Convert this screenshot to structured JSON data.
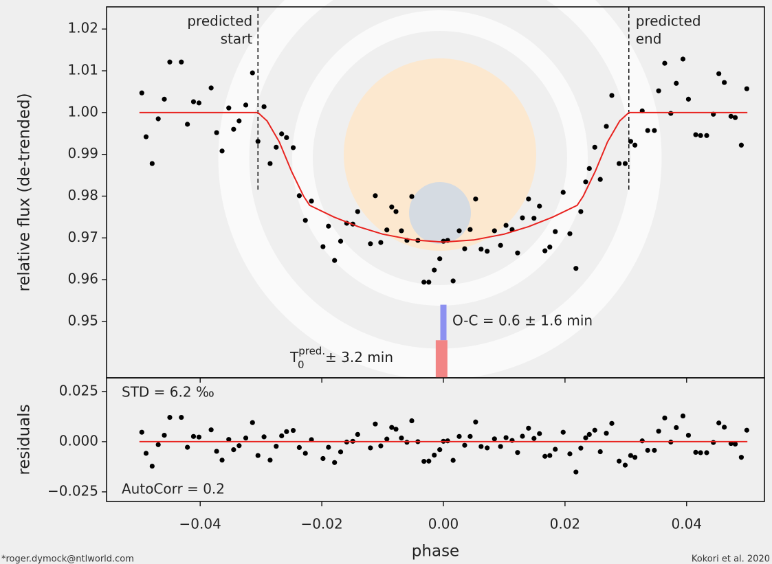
{
  "chart_data": [
    {
      "type": "scatter",
      "ylabel": "relative flux (de-trended)",
      "xlim": [
        -0.0554,
        0.0528
      ],
      "ylim": [
        0.9365,
        1.0253
      ],
      "xticks": [
        -0.04,
        -0.02,
        0,
        0.02,
        0.04
      ],
      "yticks": [
        0.95,
        0.96,
        0.97,
        0.98,
        0.99,
        {
          "value": 1,
          "label": "1.00"
        },
        1.01,
        1.02
      ],
      "series": [
        {
          "type": "scatter",
          "color": "#000000",
          "x": [
            -0.0496,
            -0.0489,
            -0.0479,
            -0.0469,
            -0.0459,
            -0.045,
            -0.0431,
            -0.0421,
            -0.0411,
            -0.0402,
            -0.0382,
            -0.0373,
            -0.0364,
            -0.0353,
            -0.0345,
            -0.0336,
            -0.0325,
            -0.0314,
            -0.0305,
            -0.0295,
            -0.0285,
            -0.0275,
            -0.0266,
            -0.0258,
            -0.0247,
            -0.0237,
            -0.0227,
            -0.0217,
            -0.0198,
            -0.0189,
            -0.0179,
            -0.0169,
            -0.0159,
            -0.0149,
            -0.0141,
            -0.012,
            -0.0112,
            -0.0103,
            -0.0093,
            -0.0085,
            -0.0078,
            -0.0069,
            -0.006,
            -0.0052,
            -0.0042,
            -0.0032,
            -0.0024,
            -0.0015,
            -0.0006,
            0.0,
            0.0007,
            0.0016,
            0.0026,
            0.0035,
            0.0044,
            0.0053,
            0.0062,
            0.0072,
            0.0084,
            0.0094,
            0.0103,
            0.0113,
            0.0122,
            0.013,
            0.014,
            0.0149,
            0.0158,
            0.0167,
            0.0175,
            0.0184,
            0.0197,
            0.0208,
            0.0218,
            0.0226,
            0.0234,
            0.024,
            0.0249,
            0.0258,
            0.0268,
            0.0277,
            0.0289,
            0.0299,
            0.0308,
            0.0315,
            0.0327,
            0.0336,
            0.0347,
            0.0354,
            0.0364,
            0.0374,
            0.0383,
            0.0394,
            0.0403,
            0.0415,
            0.0423,
            0.0433,
            0.0444,
            0.0453,
            0.0462,
            0.0473,
            0.048,
            0.049,
            0.0499
          ],
          "values": [
            1.0047,
            0.9942,
            0.9878,
            0.9985,
            1.0032,
            1.0121,
            1.0121,
            0.9972,
            1.0026,
            1.0023,
            1.0059,
            0.9952,
            0.9908,
            1.0011,
            0.996,
            0.998,
            1.0018,
            1.0095,
            0.9931,
            1.0014,
            0.9878,
            0.9917,
            0.9949,
            0.994,
            0.9916,
            0.9801,
            0.9742,
            0.9788,
            0.9679,
            0.9728,
            0.9646,
            0.9692,
            0.9735,
            0.9733,
            0.9763,
            0.9686,
            0.9801,
            0.9689,
            0.9719,
            0.9774,
            0.9763,
            0.9717,
            0.9694,
            0.9799,
            0.9694,
            0.9594,
            0.9594,
            0.9623,
            0.965,
            0.9692,
            0.9694,
            0.9597,
            0.9717,
            0.9674,
            0.972,
            0.9793,
            0.9673,
            0.9668,
            0.9717,
            0.9682,
            0.973,
            0.972,
            0.9664,
            0.9748,
            0.9793,
            0.9747,
            0.9776,
            0.9669,
            0.9678,
            0.9715,
            0.9809,
            0.971,
            0.9627,
            0.9763,
            0.9834,
            0.9866,
            0.9917,
            0.984,
            0.9967,
            1.0041,
            0.9878,
            0.9878,
            0.9931,
            0.9922,
            1.0004,
            0.9957,
            0.9957,
            1.0052,
            1.0118,
            0.9998,
            1.007,
            1.0128,
            1.0032,
            0.9947,
            0.9945,
            0.9945,
            0.9996,
            1.0093,
            1.0072,
            0.9991,
            0.9988,
            0.9922,
            1.0057
          ]
        },
        {
          "type": "line",
          "color": "#e8221e",
          "x": [
            -0.05,
            -0.0305,
            -0.029,
            -0.027,
            -0.025,
            -0.023,
            -0.022,
            -0.018,
            -0.014,
            -0.01,
            -0.005,
            0,
            0.005,
            0.01,
            0.014,
            0.018,
            0.022,
            0.023,
            0.025,
            0.027,
            0.029,
            0.0305,
            0.05
          ],
          "values": [
            1,
            1,
            0.998,
            0.993,
            0.986,
            0.98,
            0.9778,
            0.975,
            0.9727,
            0.9709,
            0.9695,
            0.969,
            0.9695,
            0.9709,
            0.9727,
            0.975,
            0.9778,
            0.98,
            0.986,
            0.993,
            0.998,
            1,
            1
          ]
        }
      ],
      "vlines": [
        {
          "x": -0.0305,
          "ymax": 0.981,
          "label": [
            "predicted",
            "start"
          ]
        },
        {
          "x": 0.0305,
          "ymax": 0.981,
          "label": [
            "predicted",
            "end"
          ]
        }
      ],
      "bars": [
        {
          "x": 0,
          "values": [
            0.9455,
            0.954
          ],
          "color": "#8c90f0"
        },
        {
          "x": -0.0003,
          "values": [
            0.9365,
            0.9455
          ],
          "color": "#f28585"
        }
      ],
      "annotations": {
        "oc": "O-C = 0.6 ± 1.6 min",
        "t0": "T",
        "t0_sub": "0",
        "t0_sup": "pred.",
        "t0_err": "± 3.2 min"
      }
    },
    {
      "type": "scatter",
      "ylabel": "residuals",
      "xlabel": "phase",
      "xlim": [
        -0.0554,
        0.0528
      ],
      "ylim": [
        -0.0298,
        0.0318
      ],
      "xticks": [
        {
          "value": -0.04,
          "label": "−0.04"
        },
        {
          "value": -0.02,
          "label": "−0.02"
        },
        {
          "value": 0,
          "label": "0.00"
        },
        0.02,
        0.04
      ],
      "yticks": [
        {
          "value": -0.025,
          "label": "−0.025"
        },
        {
          "value": 0,
          "label": "0.000"
        },
        0.025
      ],
      "series": [
        {
          "type": "scatter",
          "color": "#000000",
          "x": [
            -0.0496,
            -0.0489,
            -0.0479,
            -0.0469,
            -0.0459,
            -0.045,
            -0.0431,
            -0.0421,
            -0.0411,
            -0.0402,
            -0.0382,
            -0.0373,
            -0.0364,
            -0.0353,
            -0.0345,
            -0.0336,
            -0.0325,
            -0.0314,
            -0.0305,
            -0.0295,
            -0.0285,
            -0.0275,
            -0.0266,
            -0.0258,
            -0.0247,
            -0.0237,
            -0.0227,
            -0.0217,
            -0.0198,
            -0.0189,
            -0.0179,
            -0.0169,
            -0.0159,
            -0.0149,
            -0.0141,
            -0.012,
            -0.0112,
            -0.0103,
            -0.0093,
            -0.0085,
            -0.0078,
            -0.0069,
            -0.006,
            -0.0052,
            -0.0042,
            -0.0032,
            -0.0024,
            -0.0015,
            -0.0006,
            0.0,
            0.0007,
            0.0016,
            0.0026,
            0.0035,
            0.0044,
            0.0053,
            0.0062,
            0.0072,
            0.0084,
            0.0094,
            0.0103,
            0.0113,
            0.0122,
            0.013,
            0.014,
            0.0149,
            0.0158,
            0.0167,
            0.0175,
            0.0184,
            0.0197,
            0.0208,
            0.0218,
            0.0226,
            0.0234,
            0.024,
            0.0249,
            0.0258,
            0.0268,
            0.0277,
            0.0289,
            0.0299,
            0.0308,
            0.0315,
            0.0327,
            0.0336,
            0.0347,
            0.0354,
            0.0364,
            0.0374,
            0.0383,
            0.0394,
            0.0403,
            0.0415,
            0.0423,
            0.0433,
            0.0444,
            0.0453,
            0.0462,
            0.0473,
            0.048,
            0.049,
            0.0499
          ],
          "values": [
            0.0047,
            -0.0058,
            -0.0122,
            -0.0015,
            0.0032,
            0.0121,
            0.0121,
            -0.0028,
            0.0026,
            0.0023,
            0.0059,
            -0.0048,
            -0.0092,
            0.0011,
            -0.004,
            -0.002,
            0.0018,
            0.0095,
            -0.0069,
            0.0024,
            -0.0092,
            -0.0023,
            0.0029,
            0.005,
            0.0056,
            -0.0029,
            -0.0058,
            0.001,
            -0.0084,
            -0.0028,
            -0.0104,
            -0.0051,
            -0.0002,
            0.0002,
            0.0036,
            -0.0031,
            0.0088,
            -0.0021,
            0.0013,
            0.0071,
            0.0062,
            0.0018,
            -0.0003,
            0.0104,
            0.0,
            -0.0098,
            -0.0097,
            -0.0067,
            -0.004,
            0.0002,
            0.0004,
            -0.0093,
            0.0026,
            -0.0018,
            0.0026,
            0.0098,
            -0.0024,
            -0.0031,
            0.0014,
            -0.0024,
            0.002,
            0.0006,
            -0.0054,
            0.0027,
            0.0067,
            0.0016,
            0.004,
            -0.0073,
            -0.0069,
            -0.0038,
            0.0047,
            -0.0061,
            -0.0151,
            -0.0032,
            0.0019,
            0.0036,
            0.0057,
            -0.005,
            0.0042,
            0.0091,
            -0.0097,
            -0.0117,
            -0.0069,
            -0.0078,
            0.0004,
            -0.0043,
            -0.0043,
            0.0052,
            0.0118,
            -0.0002,
            0.007,
            0.0128,
            0.0032,
            -0.0053,
            -0.0055,
            -0.0055,
            -0.0004,
            0.0093,
            0.0072,
            -0.0009,
            -0.0012,
            -0.0078,
            0.0057
          ]
        },
        {
          "type": "line",
          "color": "#e8221e",
          "x": [
            -0.05,
            0.05
          ],
          "values": [
            0,
            0
          ]
        }
      ],
      "annotations": {
        "std": "STD = 6.2 ‰",
        "autocorr": "AutoCorr = 0.2"
      }
    }
  ],
  "footer": {
    "email": "*roger.dymock@ntlworld.com",
    "citation": "Kokori et al. 2020"
  }
}
